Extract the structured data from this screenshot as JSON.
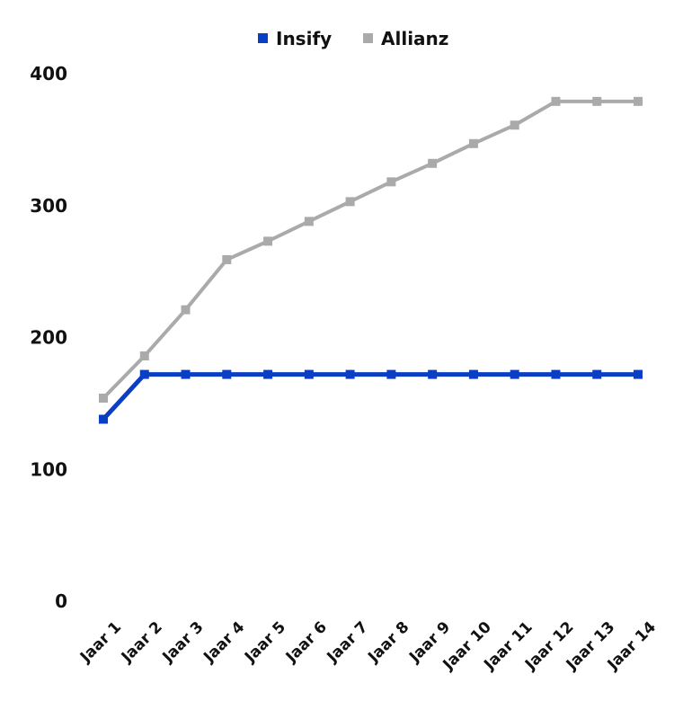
{
  "chart_data": {
    "type": "line",
    "categories": [
      "Jaar 1",
      "Jaar 2",
      "Jaar 3",
      "Jaar 4",
      "Jaar 5",
      "Jaar 6",
      "Jaar 7",
      "Jaar 8",
      "Jaar 9",
      "Jaar 10",
      "Jaar 11",
      "Jaar 12",
      "Jaar 13",
      "Jaar 14"
    ],
    "series": [
      {
        "name": "Insify",
        "color": "#0a3fc4",
        "values": [
          138,
          172,
          172,
          172,
          172,
          172,
          172,
          172,
          172,
          172,
          172,
          172,
          172,
          172
        ]
      },
      {
        "name": "Allianz",
        "color": "#aaaaaa",
        "values": [
          154,
          186,
          221,
          259,
          273,
          288,
          303,
          318,
          332,
          347,
          361,
          379,
          379,
          379
        ]
      }
    ],
    "yticks": [
      0,
      100,
      200,
      300,
      400
    ],
    "ylim": [
      0,
      400
    ],
    "grid": false,
    "legend": "top-center"
  }
}
